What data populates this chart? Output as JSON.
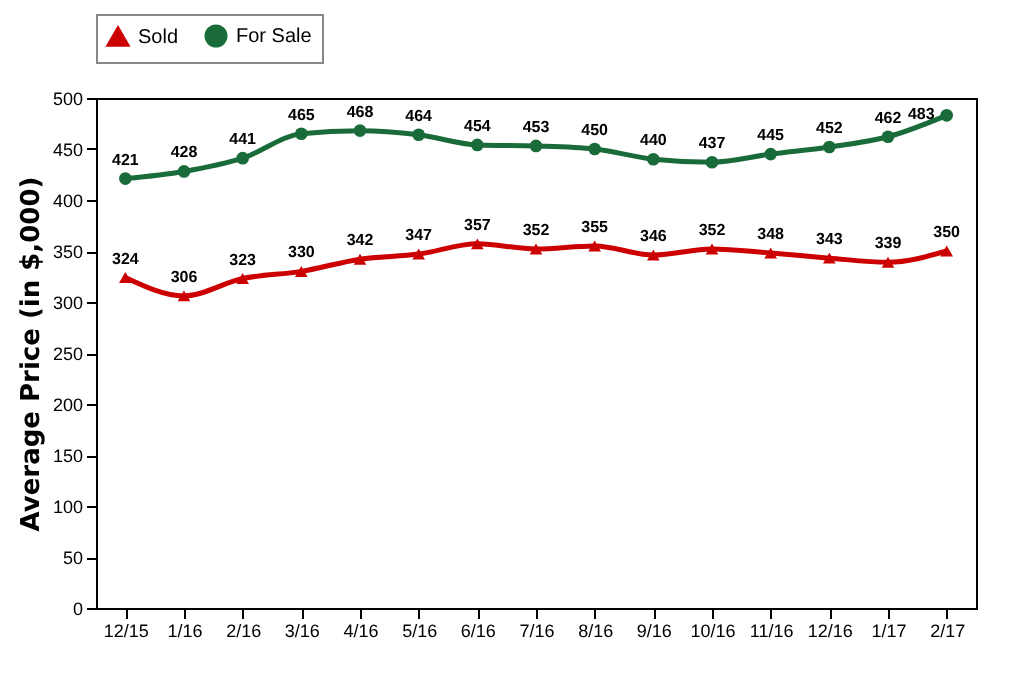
{
  "chart_data": {
    "type": "line",
    "ylabel": "Average Price (in $,000)",
    "categories": [
      "12/15",
      "1/16",
      "2/16",
      "3/16",
      "4/16",
      "5/16",
      "6/16",
      "7/16",
      "8/16",
      "9/16",
      "10/16",
      "11/16",
      "12/16",
      "1/17",
      "2/17"
    ],
    "series": [
      {
        "name": "Sold",
        "color": "#cc0000",
        "marker": "triangle",
        "values": [
          324,
          306,
          323,
          330,
          342,
          347,
          357,
          352,
          355,
          346,
          352,
          348,
          343,
          339,
          350
        ]
      },
      {
        "name": "For Sale",
        "color": "#1a6b3a",
        "marker": "circle",
        "values": [
          421,
          428,
          441,
          465,
          468,
          464,
          454,
          453,
          450,
          440,
          437,
          445,
          452,
          462,
          483
        ]
      }
    ],
    "ylim": [
      0,
      500
    ],
    "yticks": [
      0,
      50,
      100,
      150,
      200,
      250,
      300,
      350,
      400,
      450,
      500
    ],
    "legend": "top",
    "data_labels": true
  }
}
